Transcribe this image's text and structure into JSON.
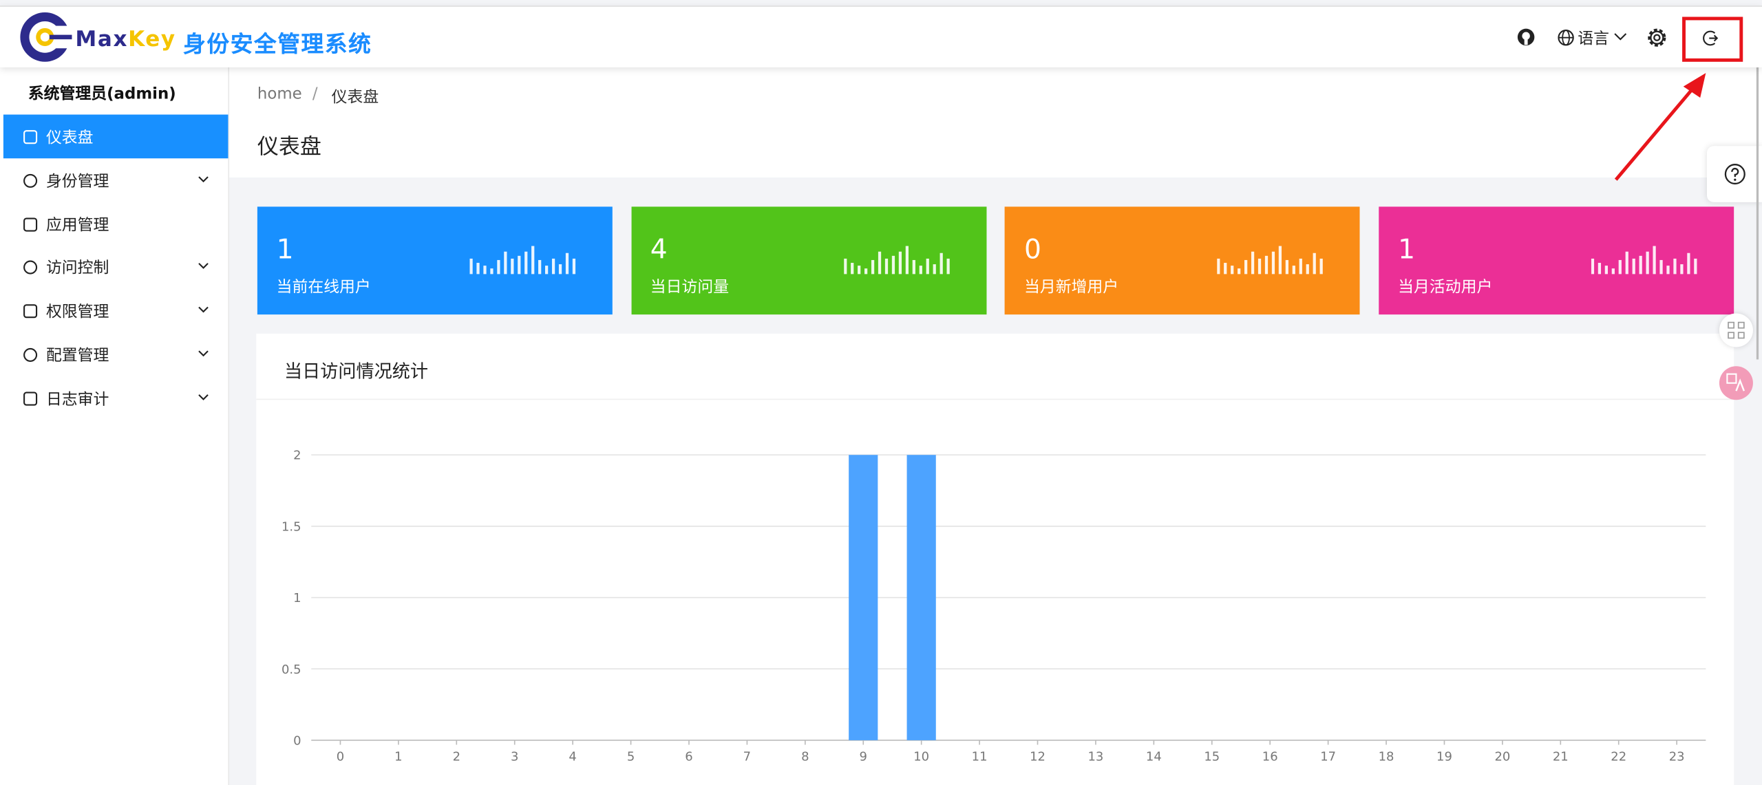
{
  "header": {
    "brand_max": "Max",
    "brand_key": "Key",
    "title": "身份安全管理系统",
    "language": "语言"
  },
  "sidebar": {
    "user": "系统管理员(admin)",
    "menu": [
      {
        "label": "仪表盘",
        "expandable": false,
        "selected": true
      },
      {
        "label": "身份管理",
        "expandable": true,
        "selected": false
      },
      {
        "label": "应用管理",
        "expandable": false,
        "selected": false
      },
      {
        "label": "访问控制",
        "expandable": true,
        "selected": false
      },
      {
        "label": "权限管理",
        "expandable": true,
        "selected": false
      },
      {
        "label": "配置管理",
        "expandable": true,
        "selected": false
      },
      {
        "label": "日志审计",
        "expandable": true,
        "selected": false
      }
    ]
  },
  "breadcrumb": {
    "items": [
      "home",
      "仪表盘"
    ],
    "separator": "/"
  },
  "page_title": "仪表盘",
  "cards": [
    {
      "value": 1,
      "label": "当前在线用户",
      "color": "#1890ff"
    },
    {
      "value": 4,
      "label": "当日访问量",
      "color": "#52c41a"
    },
    {
      "value": 0,
      "label": "当月新增用户",
      "color": "#fa8c16"
    },
    {
      "value": 1,
      "label": "当月活动用户",
      "color": "#eb2f96"
    }
  ],
  "chart_data": {
    "type": "bar",
    "title": "当日访问情况统计",
    "categories": [
      "0",
      "1",
      "2",
      "3",
      "4",
      "5",
      "6",
      "7",
      "8",
      "9",
      "10",
      "11",
      "12",
      "13",
      "14",
      "15",
      "16",
      "17",
      "18",
      "19",
      "20",
      "21",
      "22",
      "23"
    ],
    "values": [
      0,
      0,
      0,
      0,
      0,
      0,
      0,
      0,
      0,
      2,
      2,
      0,
      0,
      0,
      0,
      0,
      0,
      0,
      0,
      0,
      0,
      0,
      0,
      0
    ],
    "color": "#4da3ff",
    "ylim": [
      0,
      2
    ],
    "yticks": [
      0,
      0.5,
      1,
      1.5,
      2
    ],
    "grid": true
  }
}
